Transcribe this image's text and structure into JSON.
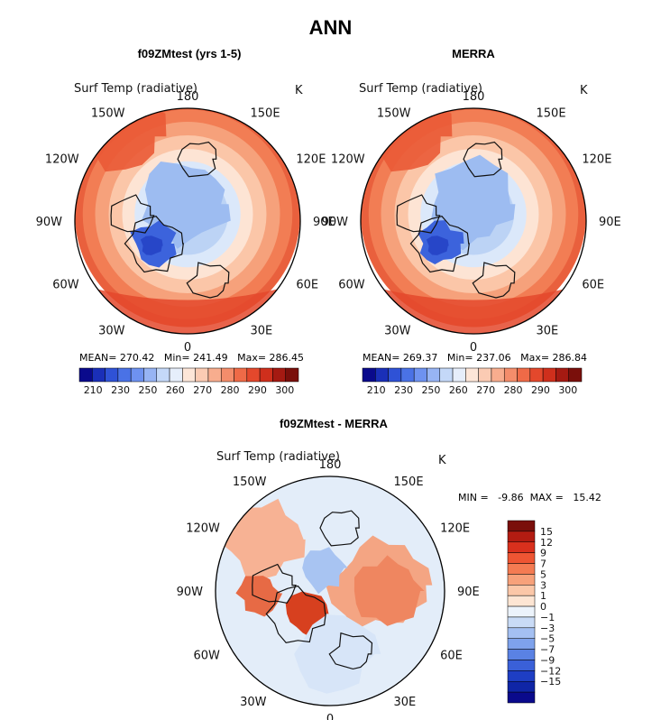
{
  "title": "ANN",
  "panels": [
    {
      "id": "model",
      "title": "f09ZMtest (yrs 1-5)",
      "variable": "Surf Temp (radiative)",
      "units": "K",
      "stats_text": "MEAN= 270.42   Min= 241.49   Max= 286.45",
      "stats": {
        "mean": 270.42,
        "min": 241.49,
        "max": 286.45
      },
      "lon_labels": {
        "top": "180",
        "upper_left": "150W",
        "upper_right": "150E",
        "left_upper": "120W",
        "right_upper": "120E",
        "left": "90W",
        "right": "90E",
        "left_lower": "60W",
        "right_lower": "60E",
        "lower_left": "30W",
        "lower_right": "30E",
        "bottom": "0"
      }
    },
    {
      "id": "obs",
      "title": "MERRA",
      "variable": "Surf Temp (radiative)",
      "units": "K",
      "stats_text": "MEAN= 269.37   Min= 237.06   Max= 286.84",
      "stats": {
        "mean": 269.37,
        "min": 237.06,
        "max": 286.84
      },
      "lon_labels": {
        "top": "180",
        "upper_left": "150W",
        "upper_right": "150E",
        "left_upper": "120W",
        "right_upper": "120E",
        "left": "90W",
        "right": "90E",
        "left_lower": "60W",
        "right_lower": "60E",
        "lower_left": "30W",
        "lower_right": "30E",
        "bottom": "0"
      }
    },
    {
      "id": "diff",
      "title": "f09ZMtest - MERRA",
      "variable": "Surf Temp (radiative)",
      "units": "K",
      "stats_text": "MIN =   -9.86  MAX =   15.42",
      "stats": {
        "min": -9.86,
        "max": 15.42
      },
      "lon_labels": {
        "top": "180",
        "upper_left": "150W",
        "upper_right": "150E",
        "left_upper": "120W",
        "right_upper": "120E",
        "left": "90W",
        "right": "90E",
        "left_lower": "60W",
        "right_lower": "60E",
        "lower_left": "30W",
        "lower_right": "30E",
        "bottom": "0"
      }
    }
  ],
  "colorbar_abs": {
    "colors": [
      "#0a0a8c",
      "#1a2fb8",
      "#2f52d6",
      "#4a72e6",
      "#6e92f0",
      "#97b4f4",
      "#c4d8f8",
      "#e6eefb",
      "#fde6d8",
      "#fbcbb3",
      "#f8ad8e",
      "#f48d6b",
      "#ef6a47",
      "#e4482c",
      "#cf2f1c",
      "#a51a12",
      "#7a0f0b"
    ],
    "labels": [
      "210",
      "230",
      "250",
      "260",
      "270",
      "280",
      "290",
      "300"
    ]
  },
  "colorbar_diff": {
    "colors": [
      "#7a0f0b",
      "#b31c12",
      "#d9301d",
      "#ee5533",
      "#f47b52",
      "#f7a17a",
      "#fbc7a8",
      "#fde5d3",
      "#ecf3fb",
      "#c9dbf6",
      "#a4c0f2",
      "#7ea2ec",
      "#5a82e4",
      "#3a60d8",
      "#1e3ec4",
      "#0f25a6",
      "#0a0a8c"
    ],
    "labels": [
      "15",
      "12",
      "9",
      "7",
      "5",
      "3",
      "1",
      "0",
      "−1",
      "−3",
      "−5",
      "−7",
      "−9",
      "−12",
      "−15"
    ]
  }
}
